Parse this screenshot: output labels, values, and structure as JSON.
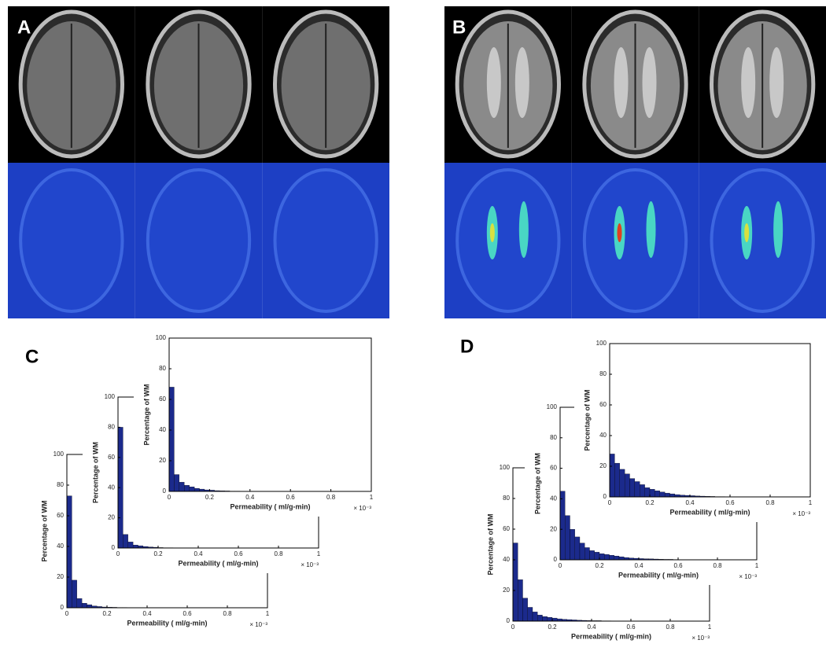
{
  "panel_labels": [
    "A",
    "B",
    "C",
    "D"
  ],
  "chart_data": [
    {
      "type": "histogram",
      "xlabel": "Permeability ( ml/g-min)",
      "ylabel": "Percentage of WM",
      "x_scale_label": "× 10⁻³",
      "color": "#1b2a8c",
      "bins": [
        0,
        0.025,
        0.05,
        0.075,
        0.1,
        0.125,
        0.15,
        0.175,
        0.2,
        0.225,
        0.25,
        0.275,
        0.3,
        0.325,
        0.35,
        0.375,
        0.4,
        0.425,
        0.45,
        0.475,
        0.5,
        0.525,
        0.55,
        0.575,
        0.6
      ],
      "values": [
        73,
        18,
        6,
        3,
        2,
        1.2,
        0.8,
        0.5,
        0.4,
        0.3,
        0.2,
        0.2,
        0.1,
        0.1,
        0.1,
        0.1,
        0,
        0,
        0,
        0,
        0,
        0,
        0,
        0
      ],
      "xlim": [
        0,
        1
      ],
      "ylim": [
        0,
        100
      ],
      "xticks": [
        0,
        0.2,
        0.4,
        0.6,
        0.8,
        1
      ],
      "yticks": [
        0,
        20,
        40,
        60,
        80,
        100
      ]
    },
    {
      "type": "histogram",
      "xlabel": "Permeability ( ml/g-min)",
      "ylabel": "Percentage of WM",
      "x_scale_label": "× 10⁻³",
      "color": "#1b2a8c",
      "bins": [
        0,
        0.025,
        0.05,
        0.075,
        0.1,
        0.125,
        0.15,
        0.175,
        0.2,
        0.225,
        0.25,
        0.275,
        0.3,
        0.325,
        0.35,
        0.375,
        0.4,
        0.425,
        0.45,
        0.475,
        0.5,
        0.525,
        0.55,
        0.575,
        0.6
      ],
      "values": [
        80,
        9,
        4,
        2,
        1.5,
        1,
        0.7,
        0.5,
        0.3,
        0.2,
        0.2,
        0.1,
        0.1,
        0.1,
        0,
        0,
        0,
        0,
        0,
        0,
        0,
        0,
        0,
        0
      ],
      "xlim": [
        0,
        1
      ],
      "ylim": [
        0,
        100
      ],
      "xticks": [
        0,
        0.2,
        0.4,
        0.6,
        0.8,
        1
      ],
      "yticks": [
        0,
        20,
        40,
        60,
        80,
        100
      ]
    },
    {
      "type": "histogram",
      "xlabel": "Permeability ( ml/g-min)",
      "ylabel": "Percentage of WM",
      "x_scale_label": "× 10⁻³",
      "color": "#1b2a8c",
      "bins": [
        0,
        0.025,
        0.05,
        0.075,
        0.1,
        0.125,
        0.15,
        0.175,
        0.2,
        0.225,
        0.25,
        0.275,
        0.3,
        0.325,
        0.35,
        0.375,
        0.4,
        0.425,
        0.45,
        0.475,
        0.5,
        0.525,
        0.55,
        0.575,
        0.6
      ],
      "values": [
        68,
        11,
        6,
        4,
        3,
        2,
        1.5,
        1,
        0.8,
        0.5,
        0.4,
        0.3,
        0.2,
        0.2,
        0.1,
        0.1,
        0.1,
        0,
        0,
        0,
        0,
        0,
        0,
        0
      ],
      "xlim": [
        0,
        1
      ],
      "ylim": [
        0,
        100
      ],
      "xticks": [
        0,
        0.2,
        0.4,
        0.6,
        0.8,
        1
      ],
      "yticks": [
        0,
        20,
        40,
        60,
        80,
        100
      ]
    },
    {
      "type": "histogram",
      "xlabel": "Permeability ( ml/g-min)",
      "ylabel": "Percentage of WM",
      "x_scale_label": "× 10⁻³",
      "color": "#1b2a8c",
      "bins": [
        0,
        0.025,
        0.05,
        0.075,
        0.1,
        0.125,
        0.15,
        0.175,
        0.2,
        0.225,
        0.25,
        0.275,
        0.3,
        0.325,
        0.35,
        0.375,
        0.4,
        0.425,
        0.45,
        0.475,
        0.5,
        0.525,
        0.55,
        0.575,
        0.6
      ],
      "values": [
        51,
        27,
        15,
        9,
        6,
        4,
        3,
        2.5,
        2,
        1.5,
        1.2,
        1,
        0.8,
        0.6,
        0.5,
        0.4,
        0.3,
        0.3,
        0.2,
        0.2,
        0.1,
        0.1,
        0.1,
        0.1
      ],
      "xlim": [
        0,
        1
      ],
      "ylim": [
        0,
        100
      ],
      "xticks": [
        0,
        0.2,
        0.4,
        0.6,
        0.8,
        1
      ],
      "yticks": [
        0,
        20,
        40,
        60,
        80,
        100
      ]
    },
    {
      "type": "histogram",
      "xlabel": "Permeability ( ml/g-min)",
      "ylabel": "Percentage of WM",
      "x_scale_label": "× 10⁻³",
      "color": "#1b2a8c",
      "bins": [
        0,
        0.025,
        0.05,
        0.075,
        0.1,
        0.125,
        0.15,
        0.175,
        0.2,
        0.225,
        0.25,
        0.275,
        0.3,
        0.325,
        0.35,
        0.375,
        0.4,
        0.425,
        0.45,
        0.475,
        0.5,
        0.525,
        0.55,
        0.575,
        0.6
      ],
      "values": [
        45,
        29,
        20,
        15,
        11,
        8,
        6,
        5,
        4,
        3.5,
        3,
        2.5,
        2,
        1.5,
        1.2,
        1,
        0.8,
        0.7,
        0.6,
        0.5,
        0.4,
        0.3,
        0.3,
        0.2
      ],
      "xlim": [
        0,
        1
      ],
      "ylim": [
        0,
        100
      ],
      "xticks": [
        0,
        0.2,
        0.4,
        0.6,
        0.8,
        1
      ],
      "yticks": [
        0,
        20,
        40,
        60,
        80,
        100
      ]
    },
    {
      "type": "histogram",
      "xlabel": "Permeability ( ml/g-min)",
      "ylabel": "Percentage of WM",
      "x_scale_label": "× 10⁻³",
      "color": "#1b2a8c",
      "bins": [
        0,
        0.025,
        0.05,
        0.075,
        0.1,
        0.125,
        0.15,
        0.175,
        0.2,
        0.225,
        0.25,
        0.275,
        0.3,
        0.325,
        0.35,
        0.375,
        0.4,
        0.425,
        0.45,
        0.475,
        0.5,
        0.525,
        0.55,
        0.575,
        0.6
      ],
      "values": [
        28,
        22,
        18,
        15,
        12,
        10,
        8,
        6,
        5,
        4,
        3.2,
        2.5,
        2,
        1.5,
        1.2,
        1,
        0.8,
        0.6,
        0.5,
        0.4,
        0.3,
        0.2,
        0.2,
        0.1
      ],
      "xlim": [
        0,
        1
      ],
      "ylim": [
        0,
        100
      ],
      "xticks": [
        0,
        0.2,
        0.4,
        0.6,
        0.8,
        1
      ],
      "yticks": [
        0,
        20,
        40,
        60,
        80,
        100
      ]
    }
  ]
}
